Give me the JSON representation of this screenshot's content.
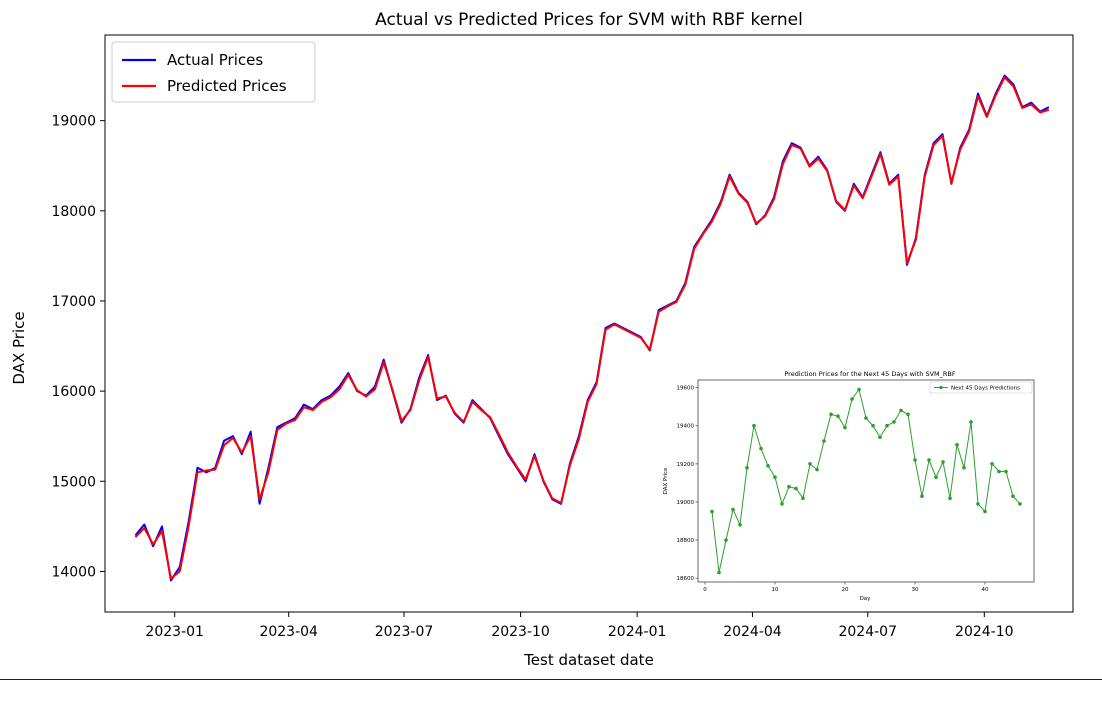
{
  "chart_data": [
    {
      "type": "line",
      "title": "Actual vs Predicted Prices for SVM with RBF kernel",
      "xlabel": "Test dataset date",
      "ylabel": "DAX Price",
      "xlim": [
        "2022-11-07",
        "2024-12-10"
      ],
      "ylim": [
        13550,
        19950
      ],
      "x_ticks": [
        "2023-01",
        "2023-04",
        "2023-07",
        "2023-10",
        "2024-01",
        "2024-04",
        "2024-07",
        "2024-10"
      ],
      "y_ticks": [
        14000,
        15000,
        16000,
        17000,
        18000,
        19000
      ],
      "grid": false,
      "legend_position": "upper-left",
      "colors": {
        "actual": "#0000ff",
        "predicted": "#ff0000"
      },
      "x": [
        "2022-12-01",
        "2022-12-08",
        "2022-12-15",
        "2022-12-22",
        "2022-12-29",
        "2023-01-05",
        "2023-01-12",
        "2023-01-19",
        "2023-01-26",
        "2023-02-02",
        "2023-02-09",
        "2023-02-16",
        "2023-02-23",
        "2023-03-02",
        "2023-03-09",
        "2023-03-16",
        "2023-03-23",
        "2023-03-30",
        "2023-04-06",
        "2023-04-13",
        "2023-04-20",
        "2023-04-27",
        "2023-05-04",
        "2023-05-11",
        "2023-05-18",
        "2023-05-25",
        "2023-06-01",
        "2023-06-08",
        "2023-06-15",
        "2023-06-22",
        "2023-06-29",
        "2023-07-06",
        "2023-07-13",
        "2023-07-20",
        "2023-07-27",
        "2023-08-03",
        "2023-08-10",
        "2023-08-17",
        "2023-08-24",
        "2023-08-31",
        "2023-09-07",
        "2023-09-14",
        "2023-09-21",
        "2023-09-28",
        "2023-10-05",
        "2023-10-12",
        "2023-10-19",
        "2023-10-26",
        "2023-11-02",
        "2023-11-09",
        "2023-11-16",
        "2023-11-23",
        "2023-11-30",
        "2023-12-07",
        "2023-12-14",
        "2023-12-21",
        "2023-12-28",
        "2024-01-04",
        "2024-01-11",
        "2024-01-18",
        "2024-01-25",
        "2024-02-01",
        "2024-02-08",
        "2024-02-15",
        "2024-02-22",
        "2024-02-29",
        "2024-03-07",
        "2024-03-14",
        "2024-03-21",
        "2024-03-28",
        "2024-04-04",
        "2024-04-11",
        "2024-04-18",
        "2024-04-25",
        "2024-05-02",
        "2024-05-09",
        "2024-05-16",
        "2024-05-23",
        "2024-05-30",
        "2024-06-06",
        "2024-06-13",
        "2024-06-20",
        "2024-06-27",
        "2024-07-04",
        "2024-07-11",
        "2024-07-18",
        "2024-07-25",
        "2024-08-01",
        "2024-08-08",
        "2024-08-15",
        "2024-08-22",
        "2024-08-29",
        "2024-09-05",
        "2024-09-12",
        "2024-09-19",
        "2024-09-26",
        "2024-10-03",
        "2024-10-10",
        "2024-10-17",
        "2024-10-24",
        "2024-10-31",
        "2024-11-07",
        "2024-11-14",
        "2024-11-21"
      ],
      "series": [
        {
          "name": "Actual Prices",
          "values": [
            14400,
            14520,
            14280,
            14500,
            13900,
            14050,
            14550,
            15150,
            15100,
            15150,
            15450,
            15500,
            15300,
            15550,
            14750,
            15150,
            15600,
            15650,
            15700,
            15850,
            15800,
            15900,
            15950,
            16050,
            16200,
            16000,
            15950,
            16050,
            16350,
            16000,
            15650,
            15800,
            16150,
            16400,
            15900,
            15950,
            15750,
            15650,
            15900,
            15800,
            15700,
            15500,
            15300,
            15150,
            15000,
            15300,
            15000,
            14800,
            14750,
            15200,
            15500,
            15900,
            16100,
            16700,
            16750,
            16700,
            16650,
            16600,
            16450,
            16900,
            16950,
            17000,
            17200,
            17600,
            17750,
            17900,
            18100,
            18400,
            18200,
            18100,
            17850,
            17950,
            18150,
            18550,
            18750,
            18700,
            18500,
            18600,
            18450,
            18100,
            18000,
            18300,
            18150,
            18400,
            18650,
            18300,
            18400,
            17400,
            17700,
            18400,
            18750,
            18850,
            18300,
            18700,
            18900,
            19300,
            19050,
            19300,
            19500,
            19400,
            19150,
            19200,
            19100,
            19150
          ]
        },
        {
          "name": "Predicted Prices",
          "values": [
            14380,
            14480,
            14300,
            14450,
            13920,
            14000,
            14500,
            15100,
            15120,
            15130,
            15400,
            15480,
            15320,
            15500,
            14800,
            15100,
            15570,
            15640,
            15680,
            15820,
            15790,
            15880,
            15930,
            16020,
            16180,
            16010,
            15940,
            16020,
            16320,
            16010,
            15670,
            15790,
            16120,
            16380,
            15920,
            15940,
            15760,
            15660,
            15880,
            15790,
            15710,
            15520,
            15320,
            15160,
            15020,
            15280,
            15010,
            14810,
            14760,
            15180,
            15470,
            15880,
            16080,
            16680,
            16740,
            16690,
            16640,
            16590,
            16460,
            16880,
            16940,
            16990,
            17180,
            17580,
            17740,
            17880,
            18080,
            18380,
            18190,
            18090,
            17860,
            17940,
            18130,
            18520,
            18730,
            18690,
            18490,
            18580,
            18440,
            18110,
            18010,
            18280,
            18140,
            18380,
            18630,
            18290,
            18380,
            17420,
            17680,
            18380,
            18730,
            18830,
            18310,
            18680,
            18880,
            19270,
            19040,
            19280,
            19480,
            19380,
            19140,
            19180,
            19090,
            19120
          ]
        }
      ]
    },
    {
      "type": "line",
      "title": "Prediction Prices for the Next 45 Days with SVM_RBF",
      "xlabel": "Day",
      "ylabel": "DAX Price",
      "xlim": [
        -1,
        47
      ],
      "ylim": [
        18580,
        19640
      ],
      "x_ticks": [
        0,
        10,
        20,
        30,
        40
      ],
      "y_ticks": [
        18600,
        18800,
        19000,
        19200,
        19400,
        19600
      ],
      "grid": false,
      "legend_position": "upper-right",
      "colors": {
        "series": "#2ca02c"
      },
      "x": [
        1,
        2,
        3,
        4,
        5,
        6,
        7,
        8,
        9,
        10,
        11,
        12,
        13,
        14,
        15,
        16,
        17,
        18,
        19,
        20,
        21,
        22,
        23,
        24,
        25,
        26,
        27,
        28,
        29,
        30,
        31,
        32,
        33,
        34,
        35,
        36,
        37,
        38,
        39,
        40,
        41,
        42,
        43,
        44,
        45
      ],
      "series": [
        {
          "name": "Next 45 Days Predictions",
          "values": [
            18950,
            18630,
            18800,
            18960,
            18880,
            19180,
            19400,
            19280,
            19190,
            19130,
            18990,
            19080,
            19070,
            19020,
            19200,
            19170,
            19320,
            19460,
            19450,
            19390,
            19540,
            19590,
            19440,
            19400,
            19340,
            19400,
            19420,
            19480,
            19460,
            19220,
            19030,
            19220,
            19130,
            19210,
            19020,
            19300,
            19180,
            19420,
            18990,
            18950,
            19200,
            19160,
            19160,
            19030,
            18990
          ]
        }
      ]
    }
  ]
}
